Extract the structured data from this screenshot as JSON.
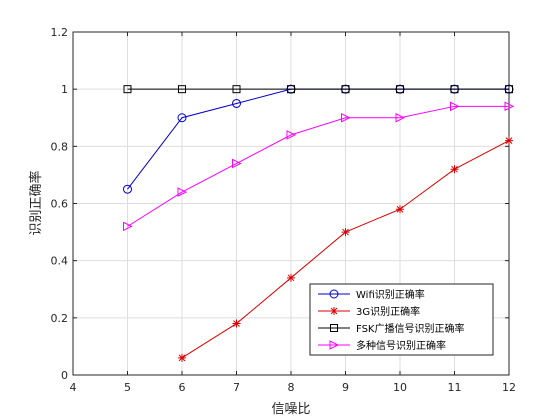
{
  "chart_data": {
    "type": "line",
    "xlabel": "信噪比",
    "ylabel": "识别正确率",
    "xlim": [
      4,
      12
    ],
    "ylim": [
      0,
      1.2
    ],
    "xticks": [
      "4",
      "5",
      "6",
      "7",
      "8",
      "9",
      "10",
      "11",
      "12"
    ],
    "yticks": [
      "0",
      "0.2",
      "0.4",
      "0.6",
      "0.8",
      "1",
      "1.2"
    ],
    "grid": true,
    "legend_position": "bottom-right",
    "series": [
      {
        "name": "Wifi识别正确率",
        "color": "#0000cc",
        "marker": "circle",
        "x": [
          5,
          6,
          7,
          8,
          9,
          10,
          11,
          12
        ],
        "y": [
          0.65,
          0.9,
          0.95,
          1.0,
          1.0,
          1.0,
          1.0,
          1.0
        ]
      },
      {
        "name": "3G识别正确率",
        "color": "#dd0000",
        "marker": "asterisk",
        "x": [
          6,
          7,
          8,
          9,
          10,
          11,
          12
        ],
        "y": [
          0.06,
          0.18,
          0.34,
          0.5,
          0.58,
          0.72,
          0.82
        ]
      },
      {
        "name": "FSK广播信号识别正确率",
        "color": "#000000",
        "marker": "square",
        "x": [
          5,
          6,
          7,
          8,
          9,
          10,
          11,
          12
        ],
        "y": [
          1.0,
          1.0,
          1.0,
          1.0,
          1.0,
          1.0,
          1.0,
          1.0
        ]
      },
      {
        "name": "多种信号识别正确率",
        "color": "#ff00ff",
        "marker": "triangle-right",
        "x": [
          5,
          6,
          7,
          8,
          9,
          10,
          11,
          12
        ],
        "y": [
          0.52,
          0.64,
          0.74,
          0.84,
          0.9,
          0.9,
          0.94,
          0.94
        ]
      }
    ]
  }
}
